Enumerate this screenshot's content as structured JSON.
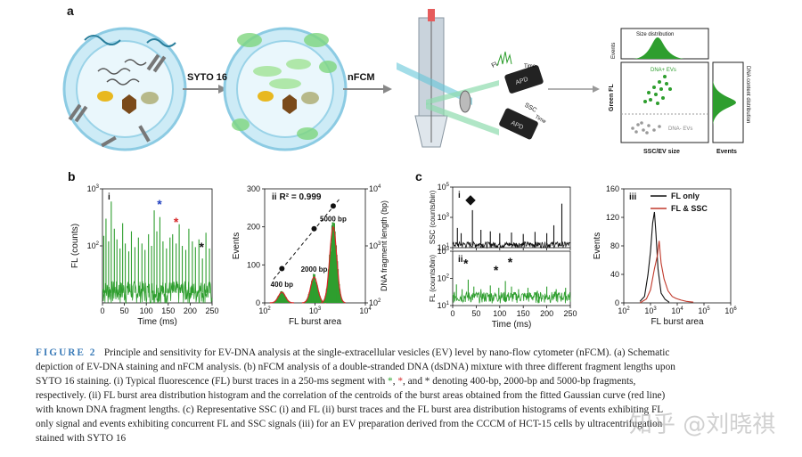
{
  "panel_labels": {
    "a": "a",
    "b": "b",
    "c": "c"
  },
  "schematic": {
    "step1": "SYTO 16",
    "step2": "nFCM",
    "detector_fl": "FL",
    "detector_fl_axis": "Time",
    "detector_apd": "APD",
    "detector_ssc": "SSC",
    "detector_ssc_axis": "Time",
    "plot_size_title": "Size distribution",
    "plot_events": "Events",
    "plot_green_fl": "Green FL",
    "plot_dna_pos": "DNA+ EVs",
    "plot_dna_neg": "DNA- EVs",
    "plot_x": "SSC/EV size",
    "plot_side_title": "DNA content distribution",
    "plot_side_events": "Events"
  },
  "colors": {
    "green": "#2e9e2e",
    "red": "#d62728",
    "blue": "#1f3fbf",
    "black": "#111111",
    "membrane": "#bfe4f2",
    "caption_blue": "#3a7bb8"
  },
  "chart_data": [
    {
      "id": "b-i",
      "type": "line",
      "panel": "i",
      "xlabel": "Time (ms)",
      "ylabel": "FL (counts)",
      "y_scale": "log",
      "xlim": [
        0,
        250
      ],
      "ylim": [
        10,
        1000
      ],
      "x_ticks": [
        "0",
        "50",
        "100",
        "150",
        "200",
        "250"
      ],
      "y_ticks": [
        "10^2",
        "10^3"
      ],
      "series": [
        {
          "color": "#2e9e2e",
          "baseline": 15,
          "spikes": [
            [
              3,
              150
            ],
            [
              8,
              300
            ],
            [
              14,
              120
            ],
            [
              20,
              600
            ],
            [
              27,
              200
            ],
            [
              33,
              130
            ],
            [
              40,
              90
            ],
            [
              46,
              250
            ],
            [
              52,
              110
            ],
            [
              60,
              80
            ],
            [
              66,
              180
            ],
            [
              74,
              95
            ],
            [
              82,
              140
            ],
            [
              90,
              110
            ],
            [
              97,
              85
            ],
            [
              105,
              160
            ],
            [
              112,
              100
            ],
            [
              118,
              420
            ],
            [
              124,
              180
            ],
            [
              131,
              320
            ],
            [
              138,
              120
            ],
            [
              146,
              90
            ],
            [
              154,
              140
            ],
            [
              160,
              160
            ],
            [
              168,
              110
            ],
            [
              175,
              240
            ],
            [
              182,
              100
            ],
            [
              190,
              85
            ],
            [
              197,
              200
            ],
            [
              205,
              120
            ],
            [
              212,
              95
            ],
            [
              220,
              130
            ],
            [
              228,
              60
            ],
            [
              236,
              170
            ],
            [
              244,
              90
            ]
          ]
        }
      ],
      "annotations": [
        {
          "text": "*",
          "color": "#1f3fbf",
          "x": 130,
          "y": 450
        },
        {
          "text": "*",
          "color": "#d62728",
          "x": 168,
          "y": 220
        },
        {
          "text": "*",
          "color": "#111111",
          "x": 226,
          "y": 80
        }
      ]
    },
    {
      "id": "b-ii",
      "type": "bar",
      "panel": "ii",
      "title": "R² = 0.999",
      "xlabel": "FL burst area",
      "ylabel": "Events",
      "ylabel_right": "DNA fragment length (bp)",
      "x_scale": "log",
      "xlim": [
        100,
        10000
      ],
      "ylim": [
        0,
        300
      ],
      "y_ticks": [
        "0",
        "100",
        "200",
        "300"
      ],
      "x_ticks": [
        "10^2",
        "10^3",
        "10^4"
      ],
      "y2_ticks": [
        "10^2",
        "10^3",
        "10^4"
      ],
      "peaks": [
        {
          "label": "400 bp",
          "center": 220,
          "height": 28
        },
        {
          "label": "2000 bp",
          "center": 960,
          "height": 68
        },
        {
          "label": "5000 bp",
          "center": 2300,
          "height": 200
        }
      ],
      "fit_points": [
        {
          "x": 220,
          "bp": 400
        },
        {
          "x": 960,
          "bp": 2000
        },
        {
          "x": 2300,
          "bp": 5000
        }
      ]
    },
    {
      "id": "c-i",
      "type": "line",
      "panel": "i",
      "ylabel": "SSC (counts/bin)",
      "y_scale": "log",
      "xlim": [
        0,
        250
      ],
      "ylim": [
        10,
        100000
      ],
      "x_ticks": [
        "0",
        "50",
        "100",
        "150",
        "200",
        "250"
      ],
      "y_ticks": [
        "10^1",
        "10^3",
        "10^5"
      ],
      "series": [
        {
          "color": "#111111",
          "baseline": 15,
          "spikes": [
            [
              10,
              200
            ],
            [
              18,
              90
            ],
            [
              42,
              3000
            ],
            [
              60,
              150
            ],
            [
              80,
              120
            ],
            [
              100,
              90
            ],
            [
              125,
              100
            ],
            [
              150,
              80
            ],
            [
              175,
              110
            ],
            [
              200,
              90
            ],
            [
              215,
              300
            ],
            [
              232,
              8000
            ]
          ]
        }
      ],
      "annotations": [
        {
          "text": "◆",
          "x": 38,
          "y": 8000
        }
      ]
    },
    {
      "id": "c-ii",
      "type": "line",
      "panel": "ii",
      "xlabel": "Time (ms)",
      "ylabel": "FL (counts/bin)",
      "y_scale": "log",
      "xlim": [
        0,
        250
      ],
      "ylim": [
        10,
        1000
      ],
      "x_ticks": [
        "0",
        "50",
        "100",
        "150",
        "200",
        "250"
      ],
      "y_ticks": [
        "10^1",
        "10^2",
        "10^3"
      ],
      "series": [
        {
          "color": "#2e9e2e",
          "baseline": 20,
          "spikes": [
            [
              8,
              60
            ],
            [
              20,
              40
            ],
            [
              33,
              90
            ],
            [
              45,
              50
            ],
            [
              60,
              40
            ],
            [
              80,
              55
            ],
            [
              98,
              45
            ],
            [
              112,
              80
            ],
            [
              125,
              50
            ],
            [
              140,
              40
            ],
            [
              160,
              45
            ],
            [
              180,
              35
            ],
            [
              200,
              50
            ],
            [
              220,
              40
            ],
            [
              240,
              45
            ]
          ]
        }
      ],
      "annotations": [
        {
          "text": "*",
          "x": 28,
          "y": 250
        },
        {
          "text": "*",
          "x": 92,
          "y": 140
        },
        {
          "text": "*",
          "x": 122,
          "y": 280
        }
      ]
    },
    {
      "id": "c-iii",
      "type": "line",
      "panel": "iii",
      "xlabel": "FL burst area",
      "ylabel": "Events",
      "x_scale": "log",
      "xlim": [
        100,
        1000000
      ],
      "ylim": [
        0,
        160
      ],
      "y_ticks": [
        "0",
        "40",
        "80",
        "120",
        "160"
      ],
      "x_ticks": [
        "10^2",
        "10^3",
        "10^4",
        "10^5",
        "10^6"
      ],
      "series": [
        {
          "name": "FL only",
          "color": "#111111",
          "points": [
            [
              400,
              2
            ],
            [
              600,
              10
            ],
            [
              800,
              40
            ],
            [
              1000,
              80
            ],
            [
              1200,
              110
            ],
            [
              1400,
              120
            ],
            [
              1600,
              90
            ],
            [
              1900,
              45
            ],
            [
              2500,
              15
            ],
            [
              3500,
              5
            ],
            [
              5000,
              1
            ]
          ]
        },
        {
          "name": "FL & SSC",
          "color": "#c0392b",
          "points": [
            [
              400,
              0
            ],
            [
              700,
              6
            ],
            [
              1000,
              20
            ],
            [
              1400,
              45
            ],
            [
              1800,
              70
            ],
            [
              2100,
              80
            ],
            [
              2500,
              60
            ],
            [
              3200,
              35
            ],
            [
              4500,
              18
            ],
            [
              6500,
              10
            ],
            [
              9000,
              6
            ],
            [
              14000,
              4
            ],
            [
              22000,
              2
            ],
            [
              40000,
              1
            ]
          ]
        }
      ]
    }
  ],
  "caption": {
    "fig_label": "FIGURE 2",
    "line1": "Principle and sensitivity for EV-DNA analysis at the single-extracellular vesicles (EV) level by nano-flow cytometer (nFCM). (a) Schematic",
    "line2": "depiction of EV-DNA staining and nFCM analysis. (b) nFCM analysis of a double-stranded DNA (dsDNA) mixture with three different fragment lengths upon",
    "line3": "SYTO 16 staining. (i) Typical fluorescence (FL) burst traces in a 250-ms segment with",
    "line3_ast_g": "*",
    "line3_comma1": ",",
    "line3_ast_r": "*",
    "line3_rest": ", and * denoting 400-bp, 2000-bp and 5000-bp fragments,",
    "line4": "respectively. (ii) FL burst area distribution histogram and the correlation of the centroids of the burst areas obtained from the fitted Gaussian curve (red line)",
    "line5": "with known DNA fragment lengths. (c) Representative SSC (i) and FL (ii) burst traces and the FL burst area distribution histograms of events exhibiting FL",
    "line6": "only signal and events exhibiting concurrent FL and SSC signals (iii) for an EV preparation derived from the CCCM of HCT-15 cells by ultracentrifugation",
    "line7": "stained with SYTO 16"
  },
  "watermark": "知乎 @刘晓祺"
}
